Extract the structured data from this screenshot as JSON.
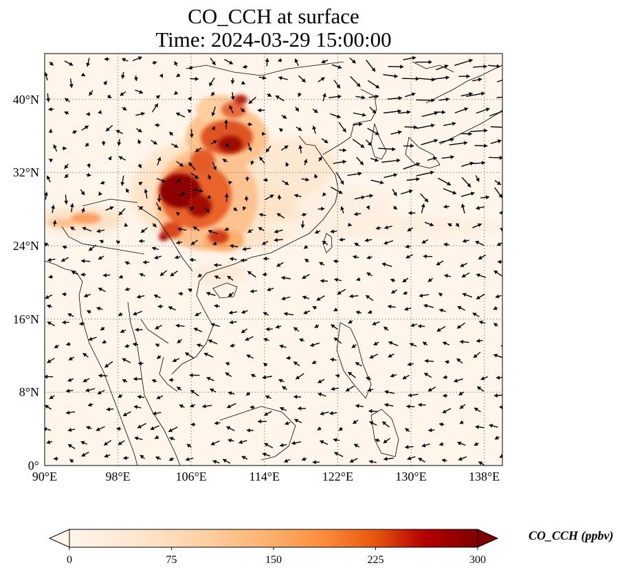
{
  "title": {
    "line1": "CO_CCH at surface",
    "line2": "Time: 2024-03-29 15:00:00"
  },
  "map": {
    "lon_ticks": [
      "90°E",
      "98°E",
      "106°E",
      "114°E",
      "122°E",
      "130°E",
      "138°E"
    ],
    "lat_ticks": [
      "0°",
      "8°N",
      "16°N",
      "24°N",
      "32°N",
      "40°N"
    ],
    "gridlines": "dotted gray",
    "variable": "CO_CCH",
    "level": "surface",
    "overlay": "wind vectors (black arrows)"
  },
  "colorbar": {
    "label": "CO_CCH (ppbv)",
    "ticks": [
      "0",
      "75",
      "150",
      "225",
      "300"
    ],
    "colormap": [
      "#fff5eb",
      "#fdd0a2",
      "#fdae6b",
      "#fd8d3c",
      "#e6550d",
      "#b30000",
      "#7f0000"
    ],
    "extend": "both"
  }
}
